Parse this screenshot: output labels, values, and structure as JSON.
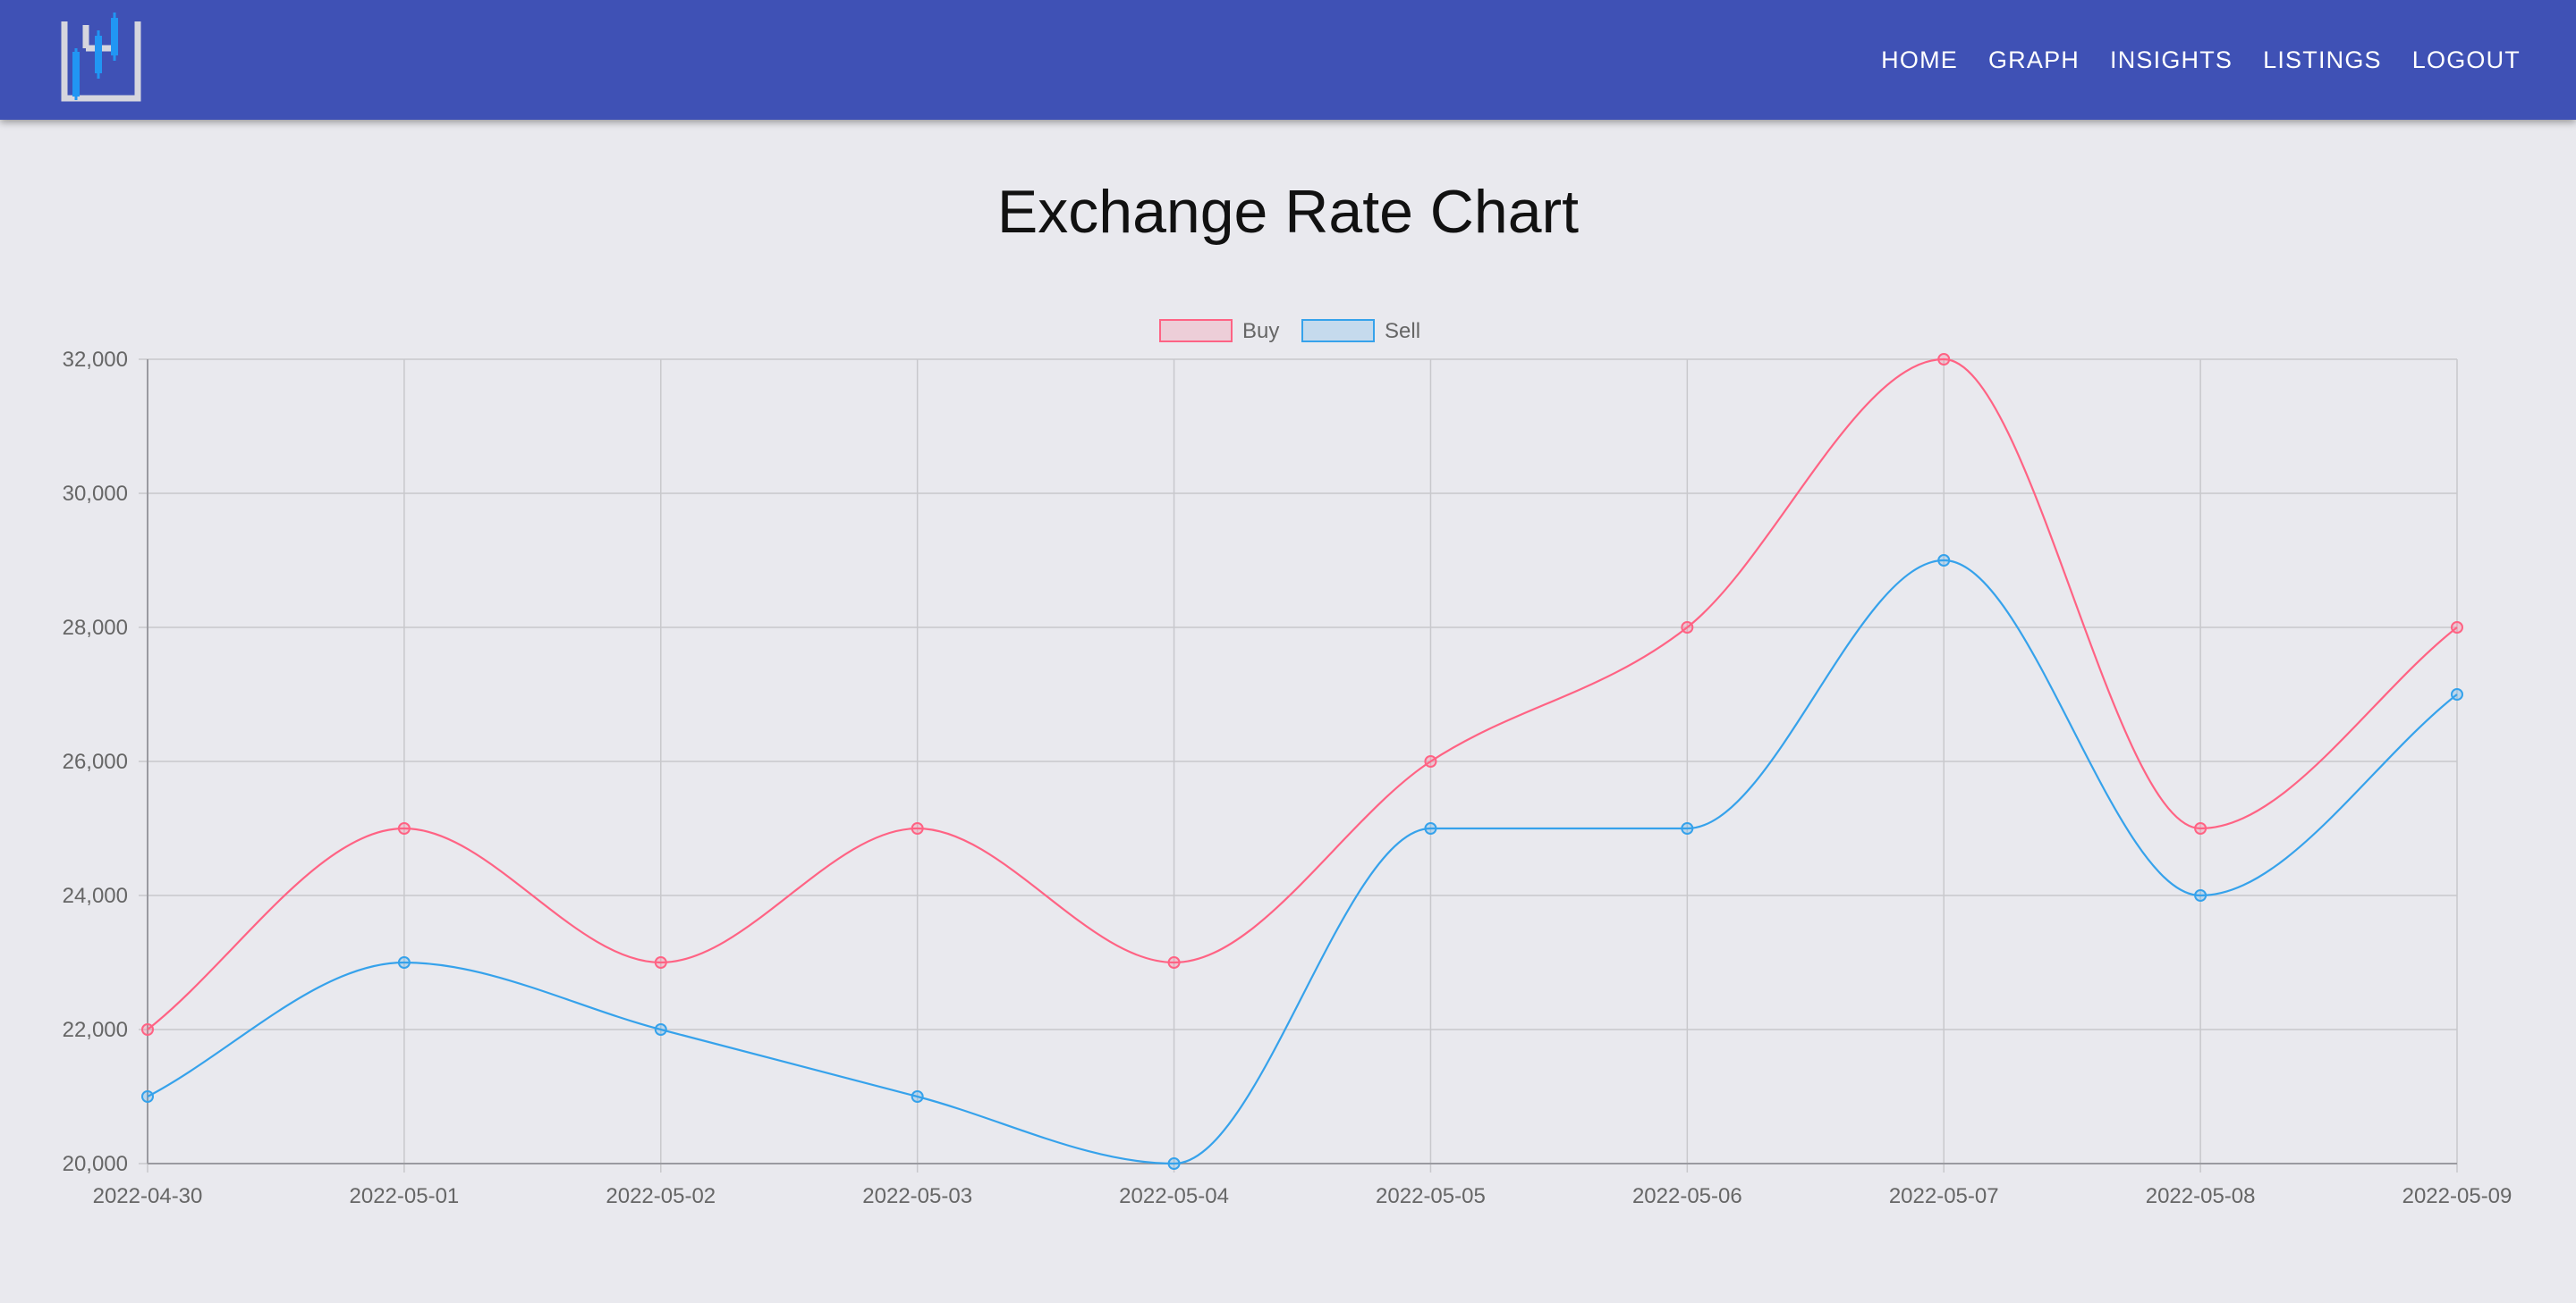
{
  "header": {
    "logo": "candlestick-chart-logo",
    "nav": [
      "HOME",
      "GRAPH",
      "INSIGHTS",
      "LISTINGS",
      "LOGOUT"
    ]
  },
  "page": {
    "title": "Exchange Rate Chart"
  },
  "colors": {
    "navbar": "#3f51b5",
    "background": "#e9e9ee",
    "buy": "#ff6384",
    "sell": "#36a2eb",
    "grid": "#c8c8cc"
  },
  "chart_data": {
    "type": "line",
    "title": "",
    "xlabel": "",
    "ylabel": "",
    "x": [
      "2022-04-30",
      "2022-05-01",
      "2022-05-02",
      "2022-05-03",
      "2022-05-04",
      "2022-05-05",
      "2022-05-06",
      "2022-05-07",
      "2022-05-08",
      "2022-05-09"
    ],
    "series": [
      {
        "name": "Buy",
        "color": "#ff6384",
        "values": [
          22000,
          25000,
          23000,
          25000,
          23000,
          26000,
          28000,
          32000,
          25000,
          28000
        ]
      },
      {
        "name": "Sell",
        "color": "#36a2eb",
        "values": [
          21000,
          23000,
          22000,
          21000,
          20000,
          25000,
          25000,
          29000,
          24000,
          27000
        ]
      }
    ],
    "ylim": [
      20000,
      32000
    ],
    "yticks": [
      "20,000",
      "22,000",
      "24,000",
      "26,000",
      "28,000",
      "30,000",
      "32,000"
    ],
    "grid": true,
    "legend": "top-center",
    "curve": "smooth"
  }
}
